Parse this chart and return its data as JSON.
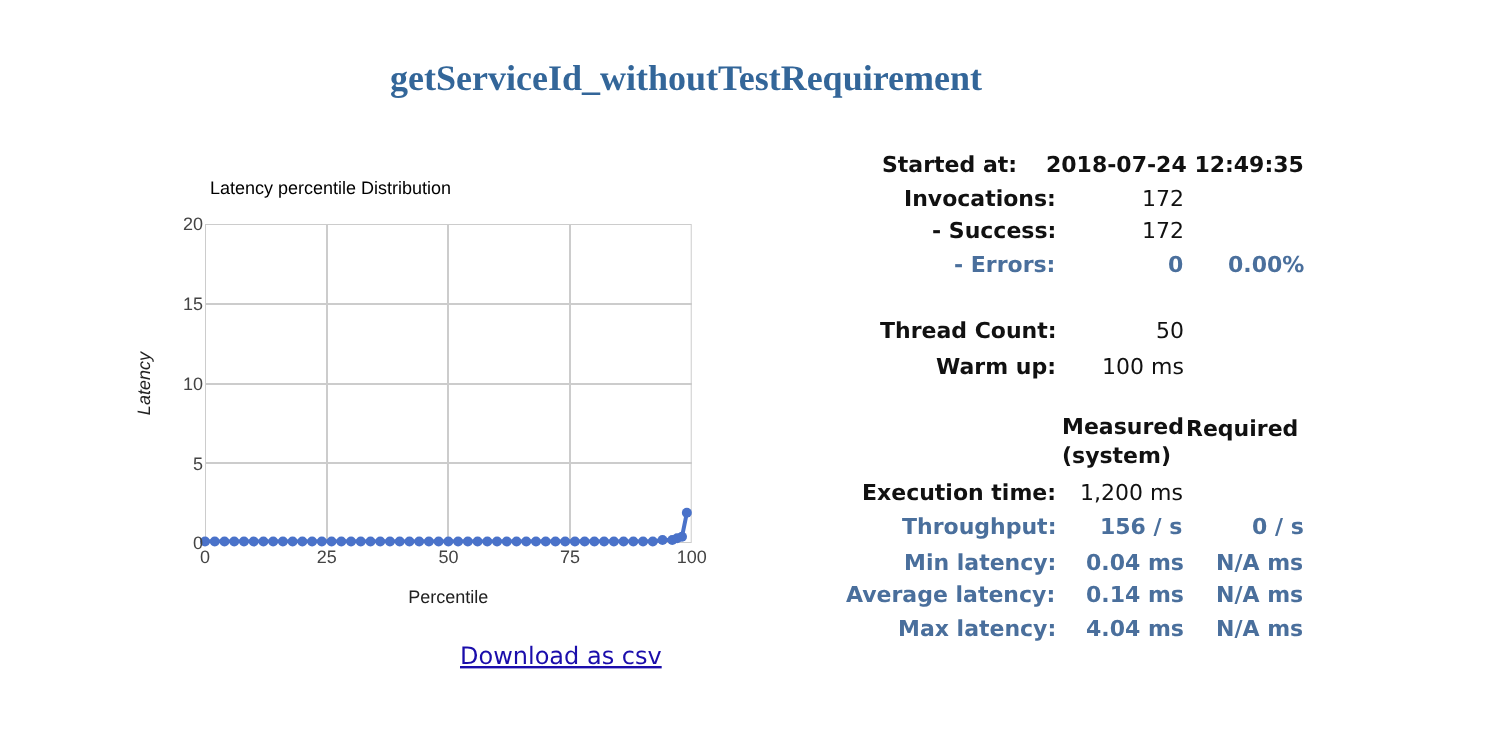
{
  "chart_data": [
    {
      "type": "other",
      "title": "getServiceId_withoutTestRequirement"
    },
    {
      "type": "line",
      "title": "Latency percentile Distribution",
      "xlabel": "Percentile",
      "ylabel": "Latency",
      "x": [
        0,
        2,
        4,
        6,
        8,
        10,
        12,
        14,
        16,
        18,
        20,
        22,
        24,
        26,
        28,
        30,
        32,
        34,
        36,
        38,
        40,
        42,
        44,
        46,
        48,
        50,
        52,
        54,
        56,
        58,
        60,
        62,
        64,
        66,
        68,
        70,
        72,
        74,
        76,
        78,
        80,
        82,
        84,
        86,
        88,
        90,
        92,
        94,
        96,
        97,
        98,
        99
      ],
      "series": [
        {
          "color": "#4a72c9",
          "values": [
            0.1,
            0.1,
            0.1,
            0.1,
            0.1,
            0.1,
            0.1,
            0.1,
            0.1,
            0.1,
            0.1,
            0.1,
            0.1,
            0.1,
            0.1,
            0.1,
            0.1,
            0.1,
            0.1,
            0.1,
            0.1,
            0.1,
            0.1,
            0.1,
            0.1,
            0.1,
            0.1,
            0.1,
            0.1,
            0.1,
            0.1,
            0.1,
            0.1,
            0.1,
            0.1,
            0.1,
            0.1,
            0.1,
            0.1,
            0.1,
            0.1,
            0.1,
            0.1,
            0.1,
            0.1,
            0.1,
            0.1,
            0.2,
            0.2,
            0.3,
            0.4,
            1.9
          ]
        }
      ],
      "xlim": [
        0,
        100
      ],
      "xticks": [
        0,
        25,
        50,
        75,
        100
      ],
      "ylim": [
        0,
        20
      ],
      "yticks": [
        0,
        5,
        10,
        15,
        20
      ],
      "grid": true,
      "marker": "circle",
      "line_style": "solid",
      "annotations": [
        "Download as csv"
      ]
    },
    {
      "type": "other",
      "annotations": [
        "Started at:",
        "2018-07-24 12:49:35",
        "Invocations:",
        "172",
        "- Success:",
        "172",
        "- Errors:",
        "0",
        "0.00%",
        "Thread Count:",
        "50",
        "Warm up:",
        "100 ms",
        "Measured (system)",
        "Required",
        "Execution time:",
        "1,200 ms",
        "Throughput:",
        "156 / s",
        "0 / s",
        "Min latency:",
        "0.04 ms",
        "N/A ms",
        "Average latency:",
        "0.14 ms",
        "N/A ms",
        "Max latency:",
        "4.04 ms",
        "N/A ms"
      ]
    }
  ]
}
